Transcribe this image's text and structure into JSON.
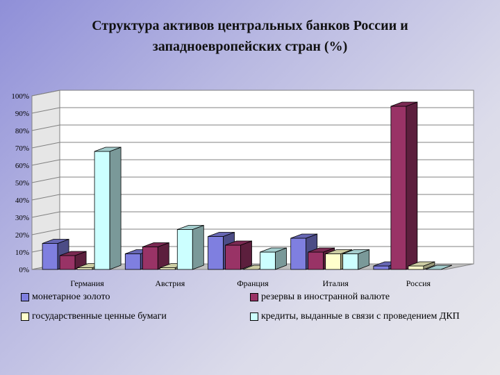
{
  "chart_data": {
    "type": "bar",
    "title_line1": "Структура активов центральных банков России и",
    "title_line2": "западноевропейских стран (%)",
    "categories": [
      "Германия",
      "Австрия",
      "Франция",
      "Италия",
      "Россия"
    ],
    "series": [
      {
        "name": "монетарное золото",
        "values": [
          15,
          9,
          19,
          18,
          2
        ],
        "color": "#7f7fe0"
      },
      {
        "name": "резервы в иностранной валюте",
        "values": [
          8,
          13,
          14,
          10,
          94
        ],
        "color": "#993366"
      },
      {
        "name": "государственные ценные бумаги",
        "values": [
          1,
          1,
          0,
          9,
          2
        ],
        "color": "#ffffcc"
      },
      {
        "name": "кредиты, выданные в связи с проведением ДКП",
        "values": [
          68,
          23,
          10,
          9,
          0
        ],
        "color": "#ccffff"
      }
    ],
    "yticks": [
      "0%",
      "10%",
      "20%",
      "30%",
      "40%",
      "50%",
      "60%",
      "70%",
      "80%",
      "90%",
      "100%"
    ],
    "ylim": [
      0,
      100
    ],
    "grid": true,
    "legend_position": "bottom"
  }
}
